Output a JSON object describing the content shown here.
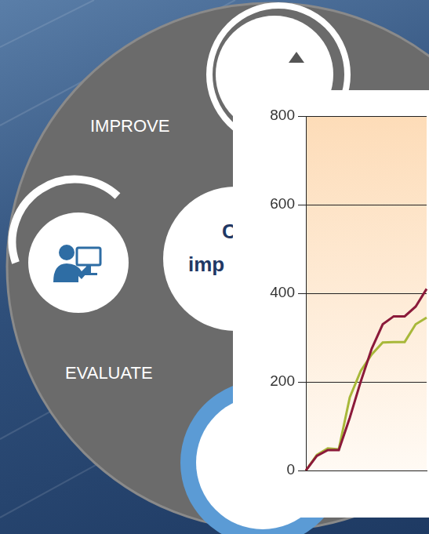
{
  "diagram": {
    "labels": [
      "IMPROVE",
      "EVALUATE"
    ],
    "center_text": [
      "C",
      "imp"
    ]
  },
  "chart_data": {
    "type": "line",
    "categories": [
      null,
      null,
      null,
      null,
      null,
      null,
      null,
      null,
      null,
      null,
      null,
      null
    ],
    "series": [
      {
        "color": "#8b1a3a",
        "values": [
          0,
          33,
          46,
          46,
          119,
          201,
          275,
          330,
          348,
          348,
          370,
          410
        ]
      },
      {
        "color": "#a8b83a",
        "values": [
          0,
          35,
          50,
          48,
          165,
          225,
          262,
          289,
          290,
          290,
          330,
          345
        ]
      }
    ],
    "ylim": [
      0,
      800
    ],
    "yticks": [
      0,
      200,
      400,
      600,
      800
    ],
    "grid": true,
    "tick_labels": "y"
  }
}
